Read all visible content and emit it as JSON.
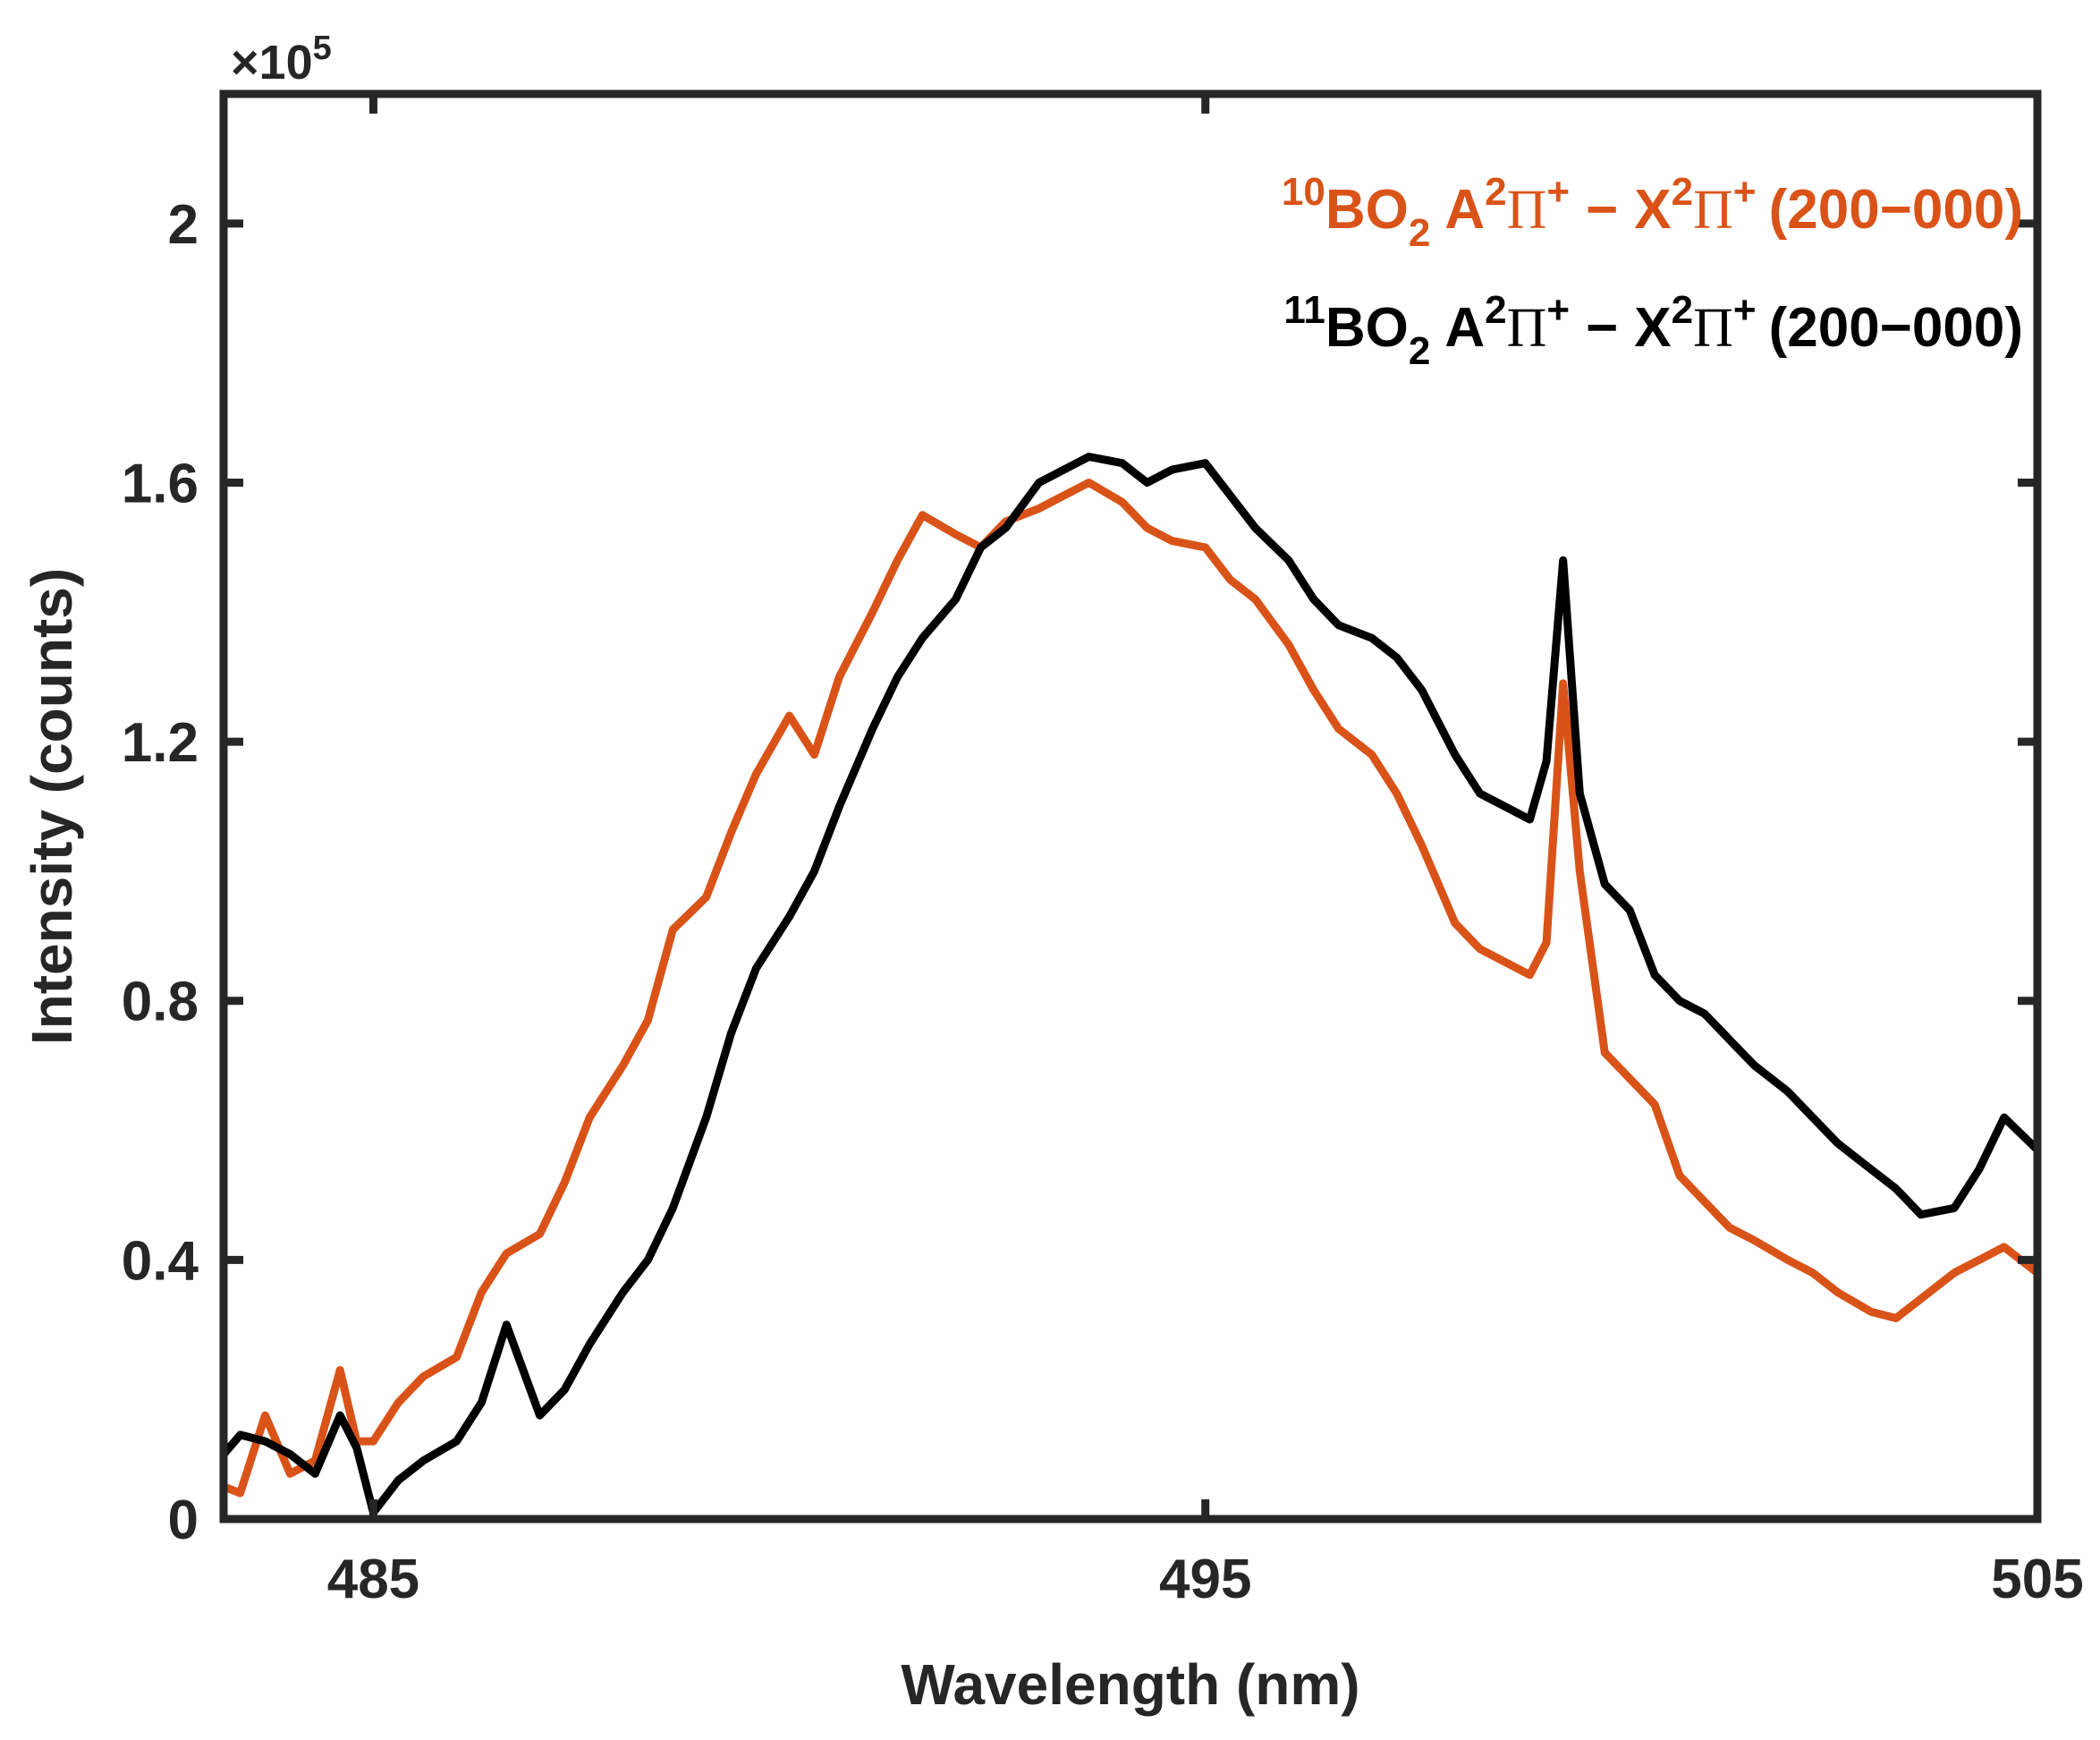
{
  "chart_data": {
    "type": "line",
    "title": "",
    "xlabel": "Wavelength (nm)",
    "ylabel": "Intensity (counts)",
    "xlim": [
      483.2,
      505
    ],
    "ylim": [
      0,
      2.2
    ],
    "y_multiplier_label": "×10",
    "y_multiplier_exponent": "5",
    "x_ticks": [
      485,
      495,
      505
    ],
    "x_tick_labels": [
      "485",
      "495",
      "505"
    ],
    "y_ticks": [
      0,
      0.4,
      0.8,
      1.2,
      1.6,
      2.0
    ],
    "y_tick_labels": [
      "0",
      "0.4",
      "0.8",
      "1.2",
      "1.6",
      "2"
    ],
    "grid": false,
    "legend_position": "top-right",
    "series": [
      {
        "name": "10BO2 A2Π+ − X2Π+ (200−000)",
        "color": "#d95319",
        "legend_parts": {
          "iso": "10",
          "mol": "BO",
          "sub": "2",
          "a": "A",
          "a_sup": "2",
          "pi": "Π",
          "plus": "+",
          "dash": "−",
          "x": "X",
          "x_sup": "2",
          "band": "(200−000)"
        },
        "x": [
          483.2,
          483.4,
          483.7,
          484.0,
          484.3,
          484.6,
          484.8,
          485.0,
          485.3,
          485.6,
          486.0,
          486.3,
          486.6,
          487.0,
          487.3,
          487.6,
          488.0,
          488.3,
          488.6,
          489.0,
          489.3,
          489.6,
          490.0,
          490.3,
          490.6,
          491.0,
          491.3,
          491.6,
          492.0,
          492.3,
          492.6,
          493.0,
          493.3,
          493.6,
          494.0,
          494.3,
          494.6,
          495.0,
          495.3,
          495.6,
          496.0,
          496.3,
          496.6,
          497.0,
          497.3,
          497.6,
          498.0,
          498.3,
          498.6,
          498.9,
          499.1,
          499.3,
          499.5,
          499.8,
          500.1,
          500.4,
          500.7,
          501.0,
          501.3,
          501.6,
          502.0,
          502.3,
          502.6,
          503.0,
          503.3,
          503.6,
          504.0,
          504.3,
          504.6,
          505.0
        ],
        "values": [
          0.05,
          0.04,
          0.16,
          0.07,
          0.09,
          0.23,
          0.12,
          0.12,
          0.18,
          0.22,
          0.25,
          0.35,
          0.41,
          0.44,
          0.52,
          0.62,
          0.7,
          0.77,
          0.91,
          0.96,
          1.06,
          1.15,
          1.24,
          1.18,
          1.3,
          1.4,
          1.48,
          1.55,
          1.52,
          1.5,
          1.54,
          1.56,
          1.58,
          1.6,
          1.57,
          1.53,
          1.51,
          1.5,
          1.45,
          1.42,
          1.35,
          1.28,
          1.22,
          1.18,
          1.12,
          1.04,
          0.92,
          0.88,
          0.86,
          0.84,
          0.89,
          1.29,
          1.0,
          0.72,
          0.68,
          0.64,
          0.53,
          0.49,
          0.45,
          0.43,
          0.4,
          0.38,
          0.35,
          0.32,
          0.31,
          0.34,
          0.38,
          0.4,
          0.42,
          0.38
        ]
      },
      {
        "name": "11BO2 A2Π+ − X2Π+ (200−000)",
        "color": "#000000",
        "legend_parts": {
          "iso": "11",
          "mol": "BO",
          "sub": "2",
          "a": "A",
          "a_sup": "2",
          "pi": "Π",
          "plus": "+",
          "dash": "−",
          "x": "X",
          "x_sup": "2",
          "band": "(200−000)"
        },
        "x": [
          483.2,
          483.4,
          483.7,
          484.0,
          484.3,
          484.6,
          484.8,
          485.0,
          485.3,
          485.6,
          486.0,
          486.3,
          486.6,
          487.0,
          487.3,
          487.6,
          488.0,
          488.3,
          488.6,
          489.0,
          489.3,
          489.6,
          490.0,
          490.3,
          490.6,
          491.0,
          491.3,
          491.6,
          492.0,
          492.3,
          492.6,
          493.0,
          493.3,
          493.6,
          494.0,
          494.3,
          494.6,
          495.0,
          495.3,
          495.6,
          496.0,
          496.3,
          496.6,
          497.0,
          497.3,
          497.6,
          498.0,
          498.3,
          498.6,
          498.9,
          499.1,
          499.3,
          499.5,
          499.8,
          500.1,
          500.4,
          500.7,
          501.0,
          501.3,
          501.6,
          502.0,
          502.3,
          502.6,
          503.0,
          503.3,
          503.6,
          504.0,
          504.3,
          504.6,
          505.0
        ],
        "values": [
          0.1,
          0.13,
          0.12,
          0.1,
          0.07,
          0.16,
          0.11,
          0.01,
          0.06,
          0.09,
          0.12,
          0.18,
          0.3,
          0.16,
          0.2,
          0.27,
          0.35,
          0.4,
          0.48,
          0.62,
          0.75,
          0.85,
          0.93,
          1.0,
          1.1,
          1.22,
          1.3,
          1.36,
          1.42,
          1.5,
          1.53,
          1.6,
          1.62,
          1.64,
          1.63,
          1.6,
          1.62,
          1.63,
          1.58,
          1.53,
          1.48,
          1.42,
          1.38,
          1.36,
          1.33,
          1.28,
          1.18,
          1.12,
          1.1,
          1.08,
          1.17,
          1.48,
          1.12,
          0.98,
          0.94,
          0.84,
          0.8,
          0.78,
          0.74,
          0.7,
          0.66,
          0.62,
          0.58,
          0.54,
          0.51,
          0.47,
          0.48,
          0.54,
          0.62,
          0.57
        ]
      }
    ]
  }
}
